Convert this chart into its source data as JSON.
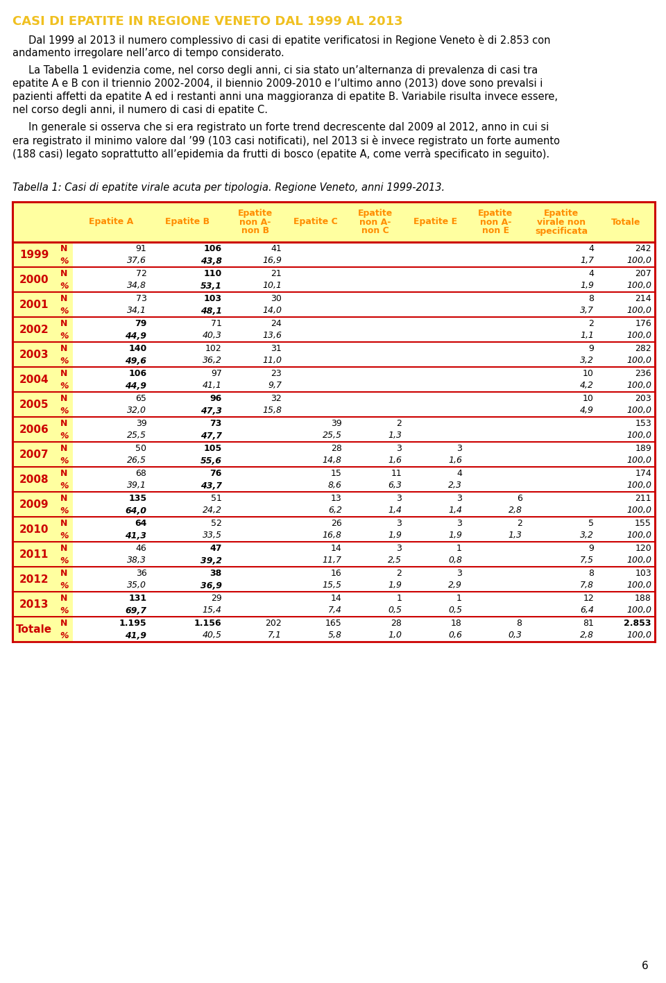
{
  "title": "CASI DI EPATITE IN REGIONE VENETO DAL 1999 AL 2013",
  "title_color": "#F0C020",
  "paragraph1": "     Dal 1999 al 2013 il numero complessivo di casi di epatite verificatosi in Regione Veneto è di 2.853 con andamento irregolare nell’arco di tempo considerato.",
  "paragraph2": "     La Tabella 1 evidenzia come, nel corso degli anni, ci sia stato un’alternanza di prevalenza di casi tra epatite A e B con il triennio 2002-2004, il biennio 2009-2010 e l’ultimo anno (2013) dove sono prevalsi i pazienti affetti da epatite A ed i restanti anni una maggioranza di epatite B. Variabile risulta invece essere, nel corso degli anni, il numero di casi di epatite C.",
  "paragraph3": "     In generale si osserva che si era registrato un forte trend decrescente dal 2009 al 2012, anno in cui si era registrato il minimo valore dal ’99 (103 casi notificati), nel 2013 si è invece registrato un forte aumento (188 casi) legato soprattutto all’epidemia da frutti di bosco (epatite A, come verrà specificato in seguito).",
  "table_caption": "Tabella 1: Casi di epatite virale acuta per tipologia. Regione Veneto, anni 1999-2013.",
  "page_number": "6",
  "header_bg": "#FFFFA0",
  "header_text_color": "#FF8C00",
  "year_col_bg": "#FFFFA0",
  "year_text_color": "#CC0000",
  "border_color": "#CC0000",
  "years": [
    "1999",
    "2000",
    "2001",
    "2002",
    "2003",
    "2004",
    "2005",
    "2006",
    "2007",
    "2008",
    "2009",
    "2010",
    "2011",
    "2012",
    "2013",
    "Totale"
  ],
  "rows": {
    "1999": {
      "N": [
        "91",
        "106",
        "41",
        "",
        "",
        "",
        "",
        "4",
        "242"
      ],
      "%": [
        "37,6",
        "43,8",
        "16,9",
        "",
        "",
        "",
        "",
        "1,7",
        "100,0"
      ],
      "bold_N": [
        false,
        true,
        false,
        false,
        false,
        false,
        false,
        false,
        false
      ],
      "bold_p": [
        false,
        true,
        false,
        false,
        false,
        false,
        false,
        false,
        false
      ]
    },
    "2000": {
      "N": [
        "72",
        "110",
        "21",
        "",
        "",
        "",
        "",
        "4",
        "207"
      ],
      "%": [
        "34,8",
        "53,1",
        "10,1",
        "",
        "",
        "",
        "",
        "1,9",
        "100,0"
      ],
      "bold_N": [
        false,
        true,
        false,
        false,
        false,
        false,
        false,
        false,
        false
      ],
      "bold_p": [
        false,
        true,
        false,
        false,
        false,
        false,
        false,
        false,
        false
      ]
    },
    "2001": {
      "N": [
        "73",
        "103",
        "30",
        "",
        "",
        "",
        "",
        "8",
        "214"
      ],
      "%": [
        "34,1",
        "48,1",
        "14,0",
        "",
        "",
        "",
        "",
        "3,7",
        "100,0"
      ],
      "bold_N": [
        false,
        true,
        false,
        false,
        false,
        false,
        false,
        false,
        false
      ],
      "bold_p": [
        false,
        true,
        false,
        false,
        false,
        false,
        false,
        false,
        false
      ]
    },
    "2002": {
      "N": [
        "79",
        "71",
        "24",
        "",
        "",
        "",
        "",
        "2",
        "176"
      ],
      "%": [
        "44,9",
        "40,3",
        "13,6",
        "",
        "",
        "",
        "",
        "1,1",
        "100,0"
      ],
      "bold_N": [
        true,
        false,
        false,
        false,
        false,
        false,
        false,
        false,
        false
      ],
      "bold_p": [
        true,
        false,
        false,
        false,
        false,
        false,
        false,
        false,
        false
      ]
    },
    "2003": {
      "N": [
        "140",
        "102",
        "31",
        "",
        "",
        "",
        "",
        "9",
        "282"
      ],
      "%": [
        "49,6",
        "36,2",
        "11,0",
        "",
        "",
        "",
        "",
        "3,2",
        "100,0"
      ],
      "bold_N": [
        true,
        false,
        false,
        false,
        false,
        false,
        false,
        false,
        false
      ],
      "bold_p": [
        true,
        false,
        false,
        false,
        false,
        false,
        false,
        false,
        false
      ]
    },
    "2004": {
      "N": [
        "106",
        "97",
        "23",
        "",
        "",
        "",
        "",
        "10",
        "236"
      ],
      "%": [
        "44,9",
        "41,1",
        "9,7",
        "",
        "",
        "",
        "",
        "4,2",
        "100,0"
      ],
      "bold_N": [
        true,
        false,
        false,
        false,
        false,
        false,
        false,
        false,
        false
      ],
      "bold_p": [
        true,
        false,
        false,
        false,
        false,
        false,
        false,
        false,
        false
      ]
    },
    "2005": {
      "N": [
        "65",
        "96",
        "32",
        "",
        "",
        "",
        "",
        "10",
        "203"
      ],
      "%": [
        "32,0",
        "47,3",
        "15,8",
        "",
        "",
        "",
        "",
        "4,9",
        "100,0"
      ],
      "bold_N": [
        false,
        true,
        false,
        false,
        false,
        false,
        false,
        false,
        false
      ],
      "bold_p": [
        false,
        true,
        false,
        false,
        false,
        false,
        false,
        false,
        false
      ]
    },
    "2006": {
      "N": [
        "39",
        "73",
        "",
        "39",
        "2",
        "",
        "",
        "",
        "153"
      ],
      "%": [
        "25,5",
        "47,7",
        "",
        "25,5",
        "1,3",
        "",
        "",
        "",
        "100,0"
      ],
      "bold_N": [
        false,
        true,
        false,
        false,
        false,
        false,
        false,
        false,
        false
      ],
      "bold_p": [
        false,
        true,
        false,
        false,
        false,
        false,
        false,
        false,
        false
      ]
    },
    "2007": {
      "N": [
        "50",
        "105",
        "",
        "28",
        "3",
        "3",
        "",
        "",
        "189"
      ],
      "%": [
        "26,5",
        "55,6",
        "",
        "14,8",
        "1,6",
        "1,6",
        "",
        "",
        "100,0"
      ],
      "bold_N": [
        false,
        true,
        false,
        false,
        false,
        false,
        false,
        false,
        false
      ],
      "bold_p": [
        false,
        true,
        false,
        false,
        false,
        false,
        false,
        false,
        false
      ]
    },
    "2008": {
      "N": [
        "68",
        "76",
        "",
        "15",
        "11",
        "4",
        "",
        "",
        "174"
      ],
      "%": [
        "39,1",
        "43,7",
        "",
        "8,6",
        "6,3",
        "2,3",
        "",
        "",
        "100,0"
      ],
      "bold_N": [
        false,
        true,
        false,
        false,
        false,
        false,
        false,
        false,
        false
      ],
      "bold_p": [
        false,
        true,
        false,
        false,
        false,
        false,
        false,
        false,
        false
      ]
    },
    "2009": {
      "N": [
        "135",
        "51",
        "",
        "13",
        "3",
        "3",
        "6",
        "",
        "211"
      ],
      "%": [
        "64,0",
        "24,2",
        "",
        "6,2",
        "1,4",
        "1,4",
        "2,8",
        "",
        "100,0"
      ],
      "bold_N": [
        true,
        false,
        false,
        false,
        false,
        false,
        false,
        false,
        false
      ],
      "bold_p": [
        true,
        false,
        false,
        false,
        false,
        false,
        false,
        false,
        false
      ]
    },
    "2010": {
      "N": [
        "64",
        "52",
        "",
        "26",
        "3",
        "3",
        "2",
        "5",
        "155"
      ],
      "%": [
        "41,3",
        "33,5",
        "",
        "16,8",
        "1,9",
        "1,9",
        "1,3",
        "3,2",
        "100,0"
      ],
      "bold_N": [
        true,
        false,
        false,
        false,
        false,
        false,
        false,
        false,
        false
      ],
      "bold_p": [
        true,
        false,
        false,
        false,
        false,
        false,
        false,
        false,
        false
      ]
    },
    "2011": {
      "N": [
        "46",
        "47",
        "",
        "14",
        "3",
        "1",
        "",
        "9",
        "120"
      ],
      "%": [
        "38,3",
        "39,2",
        "",
        "11,7",
        "2,5",
        "0,8",
        "",
        "7,5",
        "100,0"
      ],
      "bold_N": [
        false,
        true,
        false,
        false,
        false,
        false,
        false,
        false,
        false
      ],
      "bold_p": [
        false,
        true,
        false,
        false,
        false,
        false,
        false,
        false,
        false
      ]
    },
    "2012": {
      "N": [
        "36",
        "38",
        "",
        "16",
        "2",
        "3",
        "",
        "8",
        "103"
      ],
      "%": [
        "35,0",
        "36,9",
        "",
        "15,5",
        "1,9",
        "2,9",
        "",
        "7,8",
        "100,0"
      ],
      "bold_N": [
        false,
        true,
        false,
        false,
        false,
        false,
        false,
        false,
        false
      ],
      "bold_p": [
        false,
        true,
        false,
        false,
        false,
        false,
        false,
        false,
        false
      ]
    },
    "2013": {
      "N": [
        "131",
        "29",
        "",
        "14",
        "1",
        "1",
        "",
        "12",
        "188"
      ],
      "%": [
        "69,7",
        "15,4",
        "",
        "7,4",
        "0,5",
        "0,5",
        "",
        "6,4",
        "100,0"
      ],
      "bold_N": [
        true,
        false,
        false,
        false,
        false,
        false,
        false,
        false,
        false
      ],
      "bold_p": [
        true,
        false,
        false,
        false,
        false,
        false,
        false,
        false,
        false
      ]
    },
    "Totale": {
      "N": [
        "1.195",
        "1.156",
        "202",
        "165",
        "28",
        "18",
        "8",
        "81",
        "2.853"
      ],
      "%": [
        "41,9",
        "40,5",
        "7,1",
        "5,8",
        "1,0",
        "0,6",
        "0,3",
        "2,8",
        "100,0"
      ],
      "bold_N": [
        true,
        true,
        false,
        false,
        false,
        false,
        false,
        false,
        true
      ],
      "bold_p": [
        true,
        false,
        false,
        false,
        false,
        false,
        false,
        false,
        false
      ]
    }
  }
}
